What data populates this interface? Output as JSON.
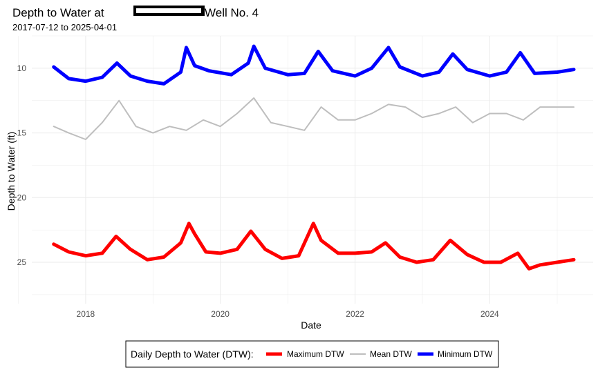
{
  "chart_data": {
    "type": "line",
    "title_prefix": "Depth to Water at",
    "title_suffix": " Well No. 4",
    "title_redacted": true,
    "subtitle": "2017-07-12 to 2025-04-01",
    "xlabel": "Date",
    "ylabel": "Depth to Water (ft)",
    "x_range": [
      "2017-07-12",
      "2025-04-01"
    ],
    "xlim": [
      "2017-03-15",
      "2025-07-15"
    ],
    "ylim": [
      28.2,
      7.5
    ],
    "y_reversed": true,
    "x_ticks": [
      "2018",
      "2020",
      "2022",
      "2024"
    ],
    "y_ticks": [
      10,
      15,
      20,
      25
    ],
    "grid": true,
    "legend_placement": "bottom",
    "legend_title": "Daily Depth to Water (DTW):",
    "series": [
      {
        "name": "Maximum DTW",
        "color": "#ff0000",
        "points": [
          [
            "2017-07-12",
            23.6
          ],
          [
            "2017-10-01",
            24.2
          ],
          [
            "2018-01-01",
            24.5
          ],
          [
            "2018-04-01",
            24.3
          ],
          [
            "2018-06-15",
            23.0
          ],
          [
            "2018-09-01",
            24.0
          ],
          [
            "2018-12-01",
            24.8
          ],
          [
            "2019-03-01",
            24.6
          ],
          [
            "2019-06-01",
            23.5
          ],
          [
            "2019-07-15",
            22.0
          ],
          [
            "2019-08-15",
            22.8
          ],
          [
            "2019-10-15",
            24.2
          ],
          [
            "2020-01-01",
            24.3
          ],
          [
            "2020-04-01",
            24.0
          ],
          [
            "2020-06-15",
            22.6
          ],
          [
            "2020-09-01",
            24.0
          ],
          [
            "2020-12-01",
            24.7
          ],
          [
            "2021-03-01",
            24.5
          ],
          [
            "2021-05-20",
            22.0
          ],
          [
            "2021-07-01",
            23.3
          ],
          [
            "2021-10-01",
            24.3
          ],
          [
            "2022-01-01",
            24.3
          ],
          [
            "2022-04-01",
            24.2
          ],
          [
            "2022-06-15",
            23.5
          ],
          [
            "2022-09-01",
            24.6
          ],
          [
            "2022-12-01",
            25.0
          ],
          [
            "2023-03-01",
            24.8
          ],
          [
            "2023-06-01",
            23.3
          ],
          [
            "2023-09-01",
            24.4
          ],
          [
            "2023-12-01",
            25.0
          ],
          [
            "2024-03-01",
            25.0
          ],
          [
            "2024-06-01",
            24.3
          ],
          [
            "2024-08-01",
            25.5
          ],
          [
            "2024-10-01",
            25.2
          ],
          [
            "2025-01-01",
            25.0
          ],
          [
            "2025-04-01",
            24.8
          ]
        ]
      },
      {
        "name": "Mean DTW",
        "color": "#bebebe",
        "points": [
          [
            "2017-07-12",
            14.5
          ],
          [
            "2017-10-01",
            15.0
          ],
          [
            "2018-01-01",
            15.5
          ],
          [
            "2018-04-01",
            14.2
          ],
          [
            "2018-07-01",
            12.5
          ],
          [
            "2018-10-01",
            14.5
          ],
          [
            "2019-01-01",
            15.0
          ],
          [
            "2019-04-01",
            14.5
          ],
          [
            "2019-07-01",
            14.8
          ],
          [
            "2019-10-01",
            14.0
          ],
          [
            "2020-01-01",
            14.5
          ],
          [
            "2020-04-01",
            13.5
          ],
          [
            "2020-07-01",
            12.3
          ],
          [
            "2020-10-01",
            14.2
          ],
          [
            "2021-01-01",
            14.5
          ],
          [
            "2021-04-01",
            14.8
          ],
          [
            "2021-07-01",
            13.0
          ],
          [
            "2021-10-01",
            14.0
          ],
          [
            "2022-01-01",
            14.0
          ],
          [
            "2022-04-01",
            13.5
          ],
          [
            "2022-07-01",
            12.8
          ],
          [
            "2022-10-01",
            13.0
          ],
          [
            "2023-01-01",
            13.8
          ],
          [
            "2023-04-01",
            13.5
          ],
          [
            "2023-07-01",
            13.0
          ],
          [
            "2023-10-01",
            14.2
          ],
          [
            "2024-01-01",
            13.5
          ],
          [
            "2024-04-01",
            13.5
          ],
          [
            "2024-07-01",
            14.0
          ],
          [
            "2024-10-01",
            13.0
          ],
          [
            "2025-01-01",
            13.0
          ],
          [
            "2025-04-01",
            13.0
          ]
        ]
      },
      {
        "name": "Minimum DTW",
        "color": "#0000ff",
        "points": [
          [
            "2017-07-12",
            9.9
          ],
          [
            "2017-10-01",
            10.8
          ],
          [
            "2018-01-01",
            11.0
          ],
          [
            "2018-04-01",
            10.7
          ],
          [
            "2018-06-20",
            9.6
          ],
          [
            "2018-09-01",
            10.6
          ],
          [
            "2018-12-01",
            11.0
          ],
          [
            "2019-03-01",
            11.2
          ],
          [
            "2019-06-01",
            10.3
          ],
          [
            "2019-07-01",
            8.4
          ],
          [
            "2019-08-15",
            9.8
          ],
          [
            "2019-11-01",
            10.2
          ],
          [
            "2020-03-01",
            10.5
          ],
          [
            "2020-06-01",
            9.6
          ],
          [
            "2020-07-01",
            8.3
          ],
          [
            "2020-09-01",
            10.0
          ],
          [
            "2021-01-01",
            10.5
          ],
          [
            "2021-04-01",
            10.4
          ],
          [
            "2021-06-15",
            8.7
          ],
          [
            "2021-09-01",
            10.2
          ],
          [
            "2022-01-01",
            10.6
          ],
          [
            "2022-04-01",
            10.0
          ],
          [
            "2022-07-01",
            8.4
          ],
          [
            "2022-09-01",
            9.9
          ],
          [
            "2023-01-01",
            10.6
          ],
          [
            "2023-04-01",
            10.3
          ],
          [
            "2023-06-15",
            8.9
          ],
          [
            "2023-09-01",
            10.1
          ],
          [
            "2024-01-01",
            10.6
          ],
          [
            "2024-04-01",
            10.3
          ],
          [
            "2024-06-15",
            8.8
          ],
          [
            "2024-09-01",
            10.4
          ],
          [
            "2025-01-01",
            10.3
          ],
          [
            "2025-04-01",
            10.1
          ]
        ]
      }
    ]
  }
}
